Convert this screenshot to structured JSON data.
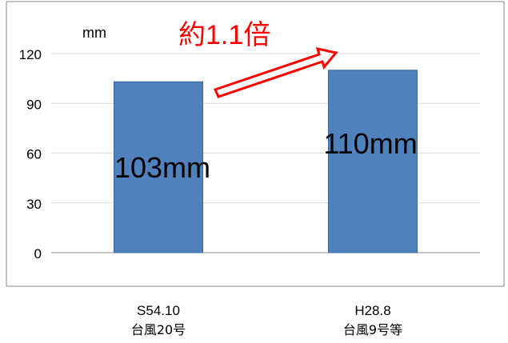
{
  "chart_data": {
    "type": "bar",
    "unit_label": "mm",
    "categories": [
      {
        "line1": "S54.10",
        "line2": "台風20号"
      },
      {
        "line1": "H28.8",
        "line2": "台風9号等"
      }
    ],
    "values": [
      103,
      110
    ],
    "data_labels": [
      "103mm",
      "110mm"
    ],
    "ylim": [
      0,
      120
    ],
    "yticks": [
      "0",
      "30",
      "60",
      "90",
      "120"
    ],
    "annotation": "約1.1倍",
    "grid": true,
    "colors": {
      "bar": "#4f81bd",
      "bar_edge": "#3b6aa0",
      "grid": "#d9d9d9",
      "axis": "#878787",
      "annotation": "#ff0000"
    }
  }
}
